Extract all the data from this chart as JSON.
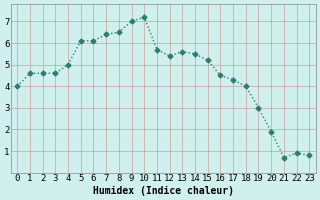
{
  "xlabel": "Humidex (Indice chaleur)",
  "x_values": [
    0,
    1,
    2,
    3,
    4,
    5,
    6,
    7,
    8,
    9,
    10,
    11,
    12,
    13,
    14,
    15,
    16,
    17,
    18,
    19,
    20,
    21,
    22,
    23
  ],
  "y_values": [
    4.0,
    4.6,
    4.6,
    4.6,
    5.0,
    6.1,
    6.1,
    6.4,
    6.5,
    7.0,
    7.2,
    5.7,
    5.4,
    5.6,
    5.5,
    5.2,
    4.5,
    4.3,
    4.0,
    3.0,
    1.9,
    0.7,
    0.9,
    0.8
  ],
  "line_color": "#2e7d6e",
  "marker": "D",
  "marker_size": 2.5,
  "bg_color": "#cff0ec",
  "grid_color_h": "#c8a0a0",
  "grid_color_v": "#c8a0a0",
  "ylim": [
    0,
    7.8
  ],
  "yticks": [
    1,
    2,
    3,
    4,
    5,
    6,
    7
  ],
  "xlabel_fontsize": 7,
  "tick_fontsize": 6.5
}
